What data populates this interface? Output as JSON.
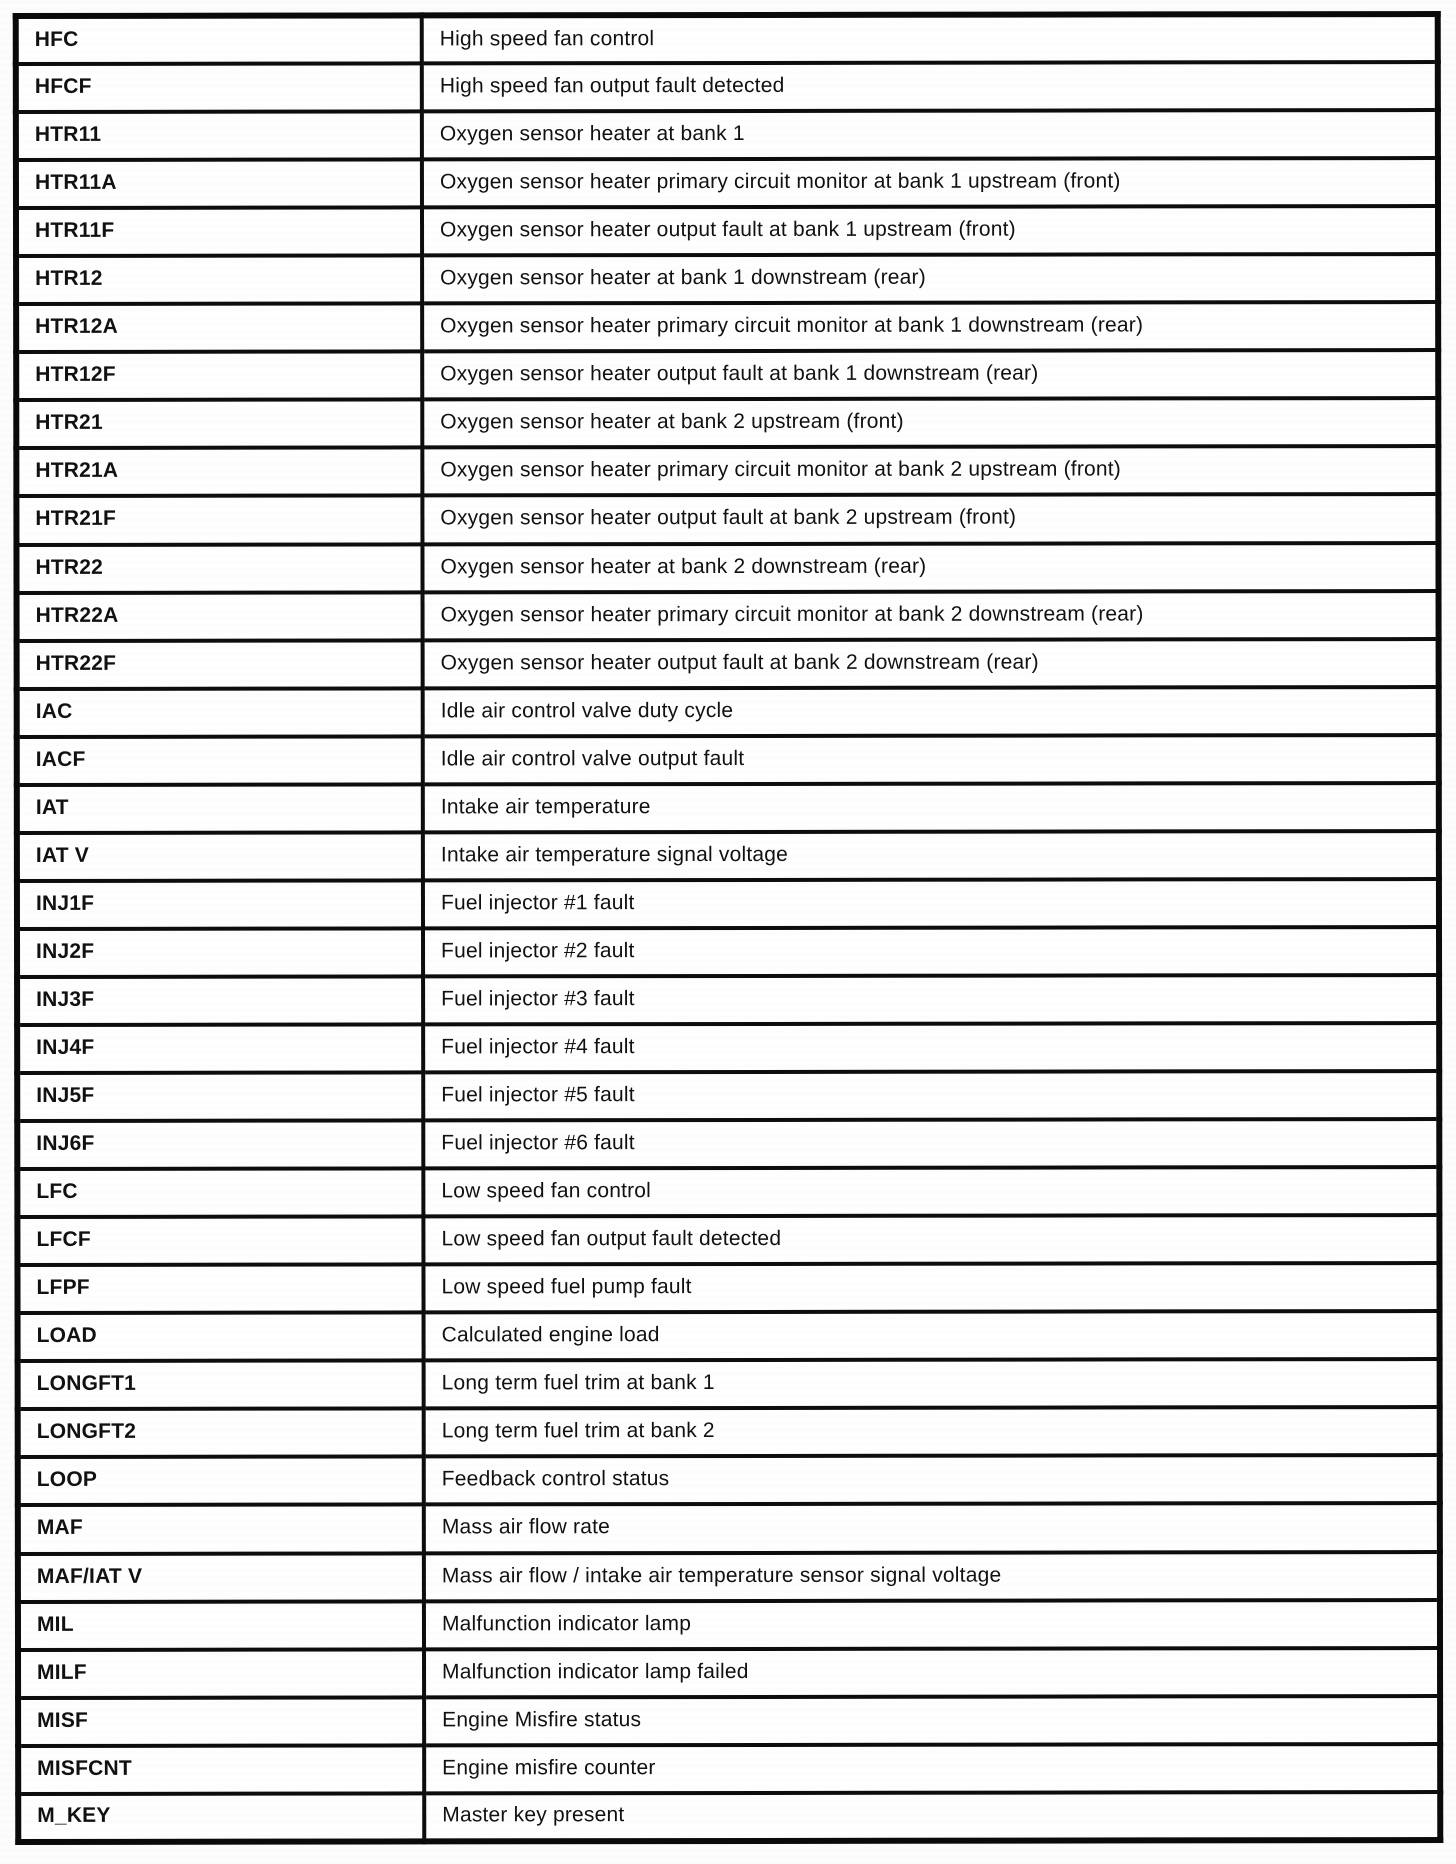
{
  "table": {
    "rows": [
      {
        "abbr": "HFC",
        "desc": "High speed fan control"
      },
      {
        "abbr": "HFCF",
        "desc": "High speed fan output fault detected"
      },
      {
        "abbr": "HTR11",
        "desc": "Oxygen sensor heater at bank 1"
      },
      {
        "abbr": "HTR11A",
        "desc": "Oxygen sensor heater primary circuit monitor at bank 1 upstream (front)"
      },
      {
        "abbr": "HTR11F",
        "desc": "Oxygen sensor heater output fault at bank 1 upstream (front)"
      },
      {
        "abbr": "HTR12",
        "desc": "Oxygen sensor heater at bank 1 downstream (rear)"
      },
      {
        "abbr": "HTR12A",
        "desc": "Oxygen sensor heater primary circuit monitor at bank 1 downstream (rear)"
      },
      {
        "abbr": "HTR12F",
        "desc": "Oxygen sensor heater output fault at bank 1 downstream (rear)"
      },
      {
        "abbr": "HTR21",
        "desc": "Oxygen sensor heater at bank 2 upstream (front)"
      },
      {
        "abbr": "HTR21A",
        "desc": "Oxygen sensor heater primary circuit monitor at bank 2 upstream (front)"
      },
      {
        "abbr": "HTR21F",
        "desc": "Oxygen sensor heater output fault at bank 2 upstream (front)"
      },
      {
        "abbr": "HTR22",
        "desc": "Oxygen sensor heater at bank 2 downstream (rear)"
      },
      {
        "abbr": "HTR22A",
        "desc": "Oxygen sensor heater primary circuit monitor at bank 2 downstream (rear)"
      },
      {
        "abbr": "HTR22F",
        "desc": "Oxygen sensor heater output fault at bank 2 downstream (rear)"
      },
      {
        "abbr": "IAC",
        "desc": "Idle air control valve duty cycle"
      },
      {
        "abbr": "IACF",
        "desc": "Idle air control valve output fault"
      },
      {
        "abbr": "IAT",
        "desc": "Intake air temperature"
      },
      {
        "abbr": "IAT V",
        "desc": "Intake air temperature signal voltage"
      },
      {
        "abbr": "INJ1F",
        "desc": "Fuel injector #1 fault"
      },
      {
        "abbr": "INJ2F",
        "desc": "Fuel injector #2 fault"
      },
      {
        "abbr": "INJ3F",
        "desc": "Fuel injector #3 fault"
      },
      {
        "abbr": "INJ4F",
        "desc": "Fuel injector #4 fault"
      },
      {
        "abbr": "INJ5F",
        "desc": "Fuel injector #5 fault"
      },
      {
        "abbr": "INJ6F",
        "desc": "Fuel injector #6 fault"
      },
      {
        "abbr": "LFC",
        "desc": "Low speed fan control"
      },
      {
        "abbr": "LFCF",
        "desc": "Low speed fan output fault detected"
      },
      {
        "abbr": "LFPF",
        "desc": "Low speed fuel pump fault"
      },
      {
        "abbr": "LOAD",
        "desc": "Calculated engine load"
      },
      {
        "abbr": "LONGFT1",
        "desc": "Long term fuel trim at bank 1"
      },
      {
        "abbr": "LONGFT2",
        "desc": "Long term fuel trim at bank 2"
      },
      {
        "abbr": "LOOP",
        "desc": "Feedback control status"
      },
      {
        "abbr": "MAF",
        "desc": "Mass air flow rate"
      },
      {
        "abbr": "MAF/IAT V",
        "desc": "Mass air flow / intake air temperature sensor signal voltage"
      },
      {
        "abbr": "MIL",
        "desc": "Malfunction indicator lamp"
      },
      {
        "abbr": "MILF",
        "desc": "Malfunction indicator lamp failed"
      },
      {
        "abbr": "MISF",
        "desc": "Engine Misfire status"
      },
      {
        "abbr": "MISFCNT",
        "desc": "Engine misfire counter"
      },
      {
        "abbr": "M_KEY",
        "desc": "Master key present"
      }
    ]
  }
}
